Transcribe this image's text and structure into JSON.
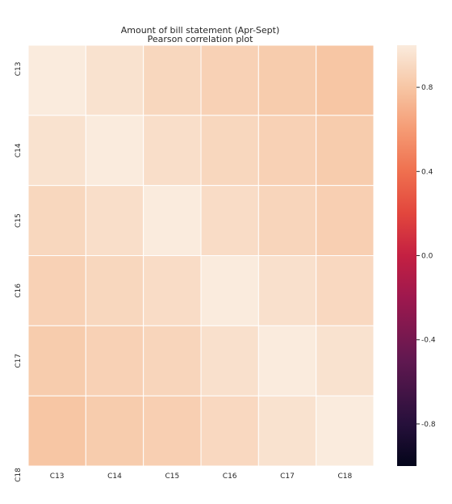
{
  "chart_data": {
    "type": "heatmap",
    "title": "Amount of bill statement (Apr-Sept)",
    "subtitle": "Pearson correlation plot",
    "x_labels": [
      "C13",
      "C14",
      "C15",
      "C16",
      "C17",
      "C18"
    ],
    "y_labels": [
      "C13",
      "C14",
      "C15",
      "C16",
      "C17",
      "C18"
    ],
    "values": [
      [
        1.0,
        0.95,
        0.89,
        0.86,
        0.83,
        0.8
      ],
      [
        0.95,
        1.0,
        0.93,
        0.89,
        0.86,
        0.83
      ],
      [
        0.89,
        0.93,
        1.0,
        0.92,
        0.88,
        0.85
      ],
      [
        0.86,
        0.89,
        0.92,
        1.0,
        0.94,
        0.9
      ],
      [
        0.83,
        0.86,
        0.88,
        0.94,
        1.0,
        0.95
      ],
      [
        0.8,
        0.83,
        0.85,
        0.9,
        0.95,
        1.0
      ]
    ],
    "vmin": -1.0,
    "vmax": 1.0,
    "colormap": "rocket",
    "colorbar_ticks": [
      "0.8",
      "0.4",
      "0.0",
      "-0.4",
      "-0.8"
    ],
    "colorbar_tick_values": [
      0.8,
      0.4,
      0.0,
      -0.4,
      -0.8
    ],
    "grid": true,
    "cell_border_color": "#ffffff"
  }
}
